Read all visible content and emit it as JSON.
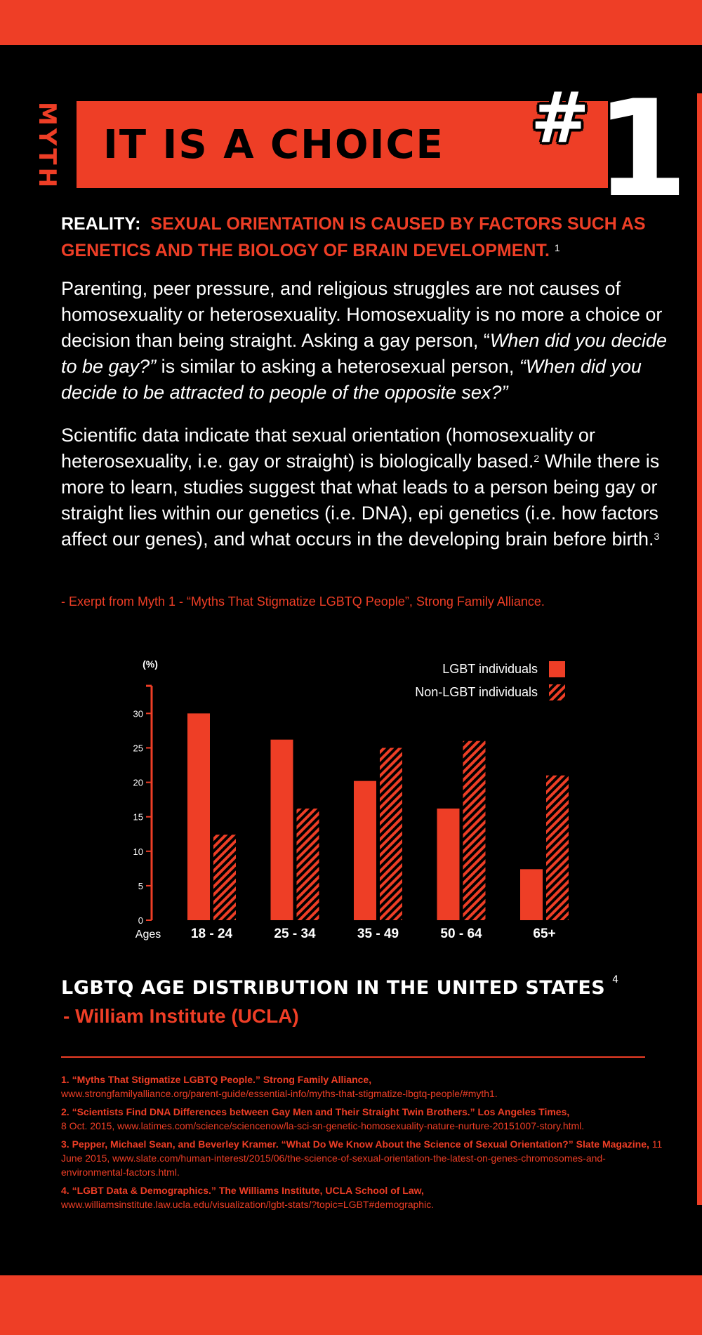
{
  "header": {
    "myth_label": "MYTH",
    "title": "IT IS A CHOICE",
    "hash": "#",
    "number": "1"
  },
  "reality": {
    "label": "REALITY:",
    "text": "SEXUAL ORIENTATION IS CAUSED BY FACTORS SUCH AS GENETICS AND THE BIOLOGY OF BRAIN DEVELOPMENT.",
    "footnote": "1"
  },
  "paragraph1": {
    "text1": "Parenting, peer pressure, and religious struggles are not causes of homosexuality or heterosexuality. Homosexuality is no more a choice or decision than being straight. Asking a gay person, “",
    "italic1": "When did you decide to be gay?”",
    "text2": " is similar to asking a heterosexual person, ",
    "italic2": "“When did you decide to be attracted to people of the opposite sex?”"
  },
  "paragraph2": {
    "text1": "Scientific data indicate that sexual orientation (homosexuality or heterosexuality, i.e. gay or straight) is biologically based.",
    "fn1": "2",
    "text2": " While there is more to learn, studies suggest that what leads to a person being gay or straight lies within our genetics (i.e. DNA), epi genetics (i.e. how factors affect our genes), and what occurs in the developing brain before birth.",
    "fn2": "3"
  },
  "excerpt": "- Exerpt from  Myth 1 - “Myths That Stigmatize LGBTQ People”, Strong Family Alliance.",
  "chart_data": {
    "type": "bar",
    "title": "",
    "xlabel": "Ages",
    "ylabel": "(%)",
    "ylim": [
      0,
      35
    ],
    "yticks": [
      0,
      5,
      10,
      15,
      20,
      25,
      30
    ],
    "categories": [
      "18 - 24",
      "25 - 34",
      "35 - 49",
      "50 - 64",
      "65+"
    ],
    "series": [
      {
        "name": "LGBT individuals",
        "values": [
          30,
          26.2,
          20.2,
          16.2,
          7.4
        ],
        "fill": "solid"
      },
      {
        "name": "Non-LGBT individuals",
        "values": [
          12.4,
          16.2,
          25,
          26,
          21
        ],
        "fill": "hatched"
      }
    ],
    "legend": "top-right",
    "grid": false,
    "colors": {
      "bar": "#ee3e26",
      "background": "#000000",
      "text": "#ffffff"
    }
  },
  "distribution": {
    "title": "LGBTQ AGE DISTRIBUTION IN THE UNITED STATES",
    "footnote": "4",
    "source": "- William Institute (UCLA)"
  },
  "references": [
    {
      "bold": "1. “Myths That Stigmatize LGBTQ People.” Strong Family Alliance,",
      "rest": "www.strongfamilyalliance.org/parent-guide/essential-info/myths-that-stigmatize-lbgtq-people/#myth1."
    },
    {
      "bold": "2. “Scientists Find DNA Differences between Gay Men and Their Straight Twin Brothers.” Los Angeles Times,",
      "rest": "8 Oct. 2015, www.latimes.com/science/sciencenow/la-sci-sn-genetic-homosexuality-nature-nurture-20151007-story.html."
    },
    {
      "bold": "3. Pepper, Michael Sean, and Beverley Kramer. “What Do We Know About the Science of Sexual Orientation?” Slate Magazine,",
      "rest": "11 June 2015, www.slate.com/human-interest/2015/06/the-science-of-sexual-orientation-the-latest-on-genes-chromosomes-and-environmental-factors.html."
    },
    {
      "bold": "4. “LGBT Data & Demographics.” The Williams Institute, UCLA School of Law,",
      "rest": "www.williamsinstitute.law.ucla.edu/visualization/lgbt-stats/?topic=LGBT#demographic."
    }
  ]
}
